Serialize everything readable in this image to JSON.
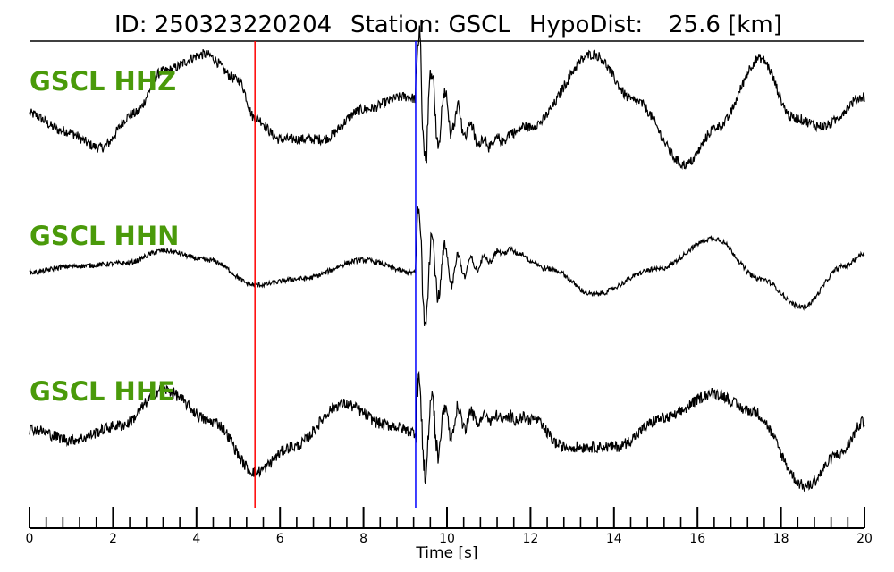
{
  "header": {
    "id_text": "ID: 250323220204",
    "station_text": "Station: GSCL",
    "hypodist_text": "HypoDist:",
    "hypodist_value": "25.6 [km]"
  },
  "colors": {
    "trace": "#000000",
    "label": "#4a9a0a",
    "p_pick": "#ff0000",
    "s_pick": "#0000ff"
  },
  "chart_data": {
    "type": "line",
    "title": "ID: 250323220204   Station: GSCL   HypoDist:    25.6 [km]",
    "xlabel": "Time [s]",
    "xlim": [
      0,
      20
    ],
    "x_ticks": [
      0,
      2,
      4,
      6,
      8,
      10,
      12,
      14,
      16,
      18,
      20
    ],
    "x_tick_labels": [
      "0",
      "2",
      "4",
      "6",
      "8",
      "10",
      "12",
      "14",
      "16",
      "18",
      "20"
    ],
    "minor_tick_step": 0.4,
    "grid": false,
    "picks": [
      {
        "phase": "P",
        "time": 5.4,
        "color": "#ff0000"
      },
      {
        "phase": "S",
        "time": 9.25,
        "color": "#0000ff"
      }
    ],
    "traces": [
      {
        "name": "GSCL HHZ",
        "noise": 0.06,
        "waypoints": [
          [
            0,
            0.05
          ],
          [
            0.8,
            -0.15
          ],
          [
            1.7,
            -0.35
          ],
          [
            2.5,
            0.05
          ],
          [
            3.2,
            0.55
          ],
          [
            4.2,
            0.75
          ],
          [
            5.0,
            0.45
          ],
          [
            5.4,
            0.0
          ],
          [
            6.0,
            -0.25
          ],
          [
            7.0,
            -0.25
          ],
          [
            8.0,
            0.1
          ],
          [
            9.0,
            0.25
          ],
          [
            10.0,
            0.05
          ],
          [
            11.0,
            -0.3
          ],
          [
            12.0,
            -0.1
          ],
          [
            13.5,
            0.75
          ],
          [
            14.5,
            0.2
          ],
          [
            15.7,
            -0.55
          ],
          [
            16.5,
            -0.1
          ],
          [
            17.5,
            0.7
          ],
          [
            18.3,
            0.0
          ],
          [
            19.0,
            -0.1
          ],
          [
            20.0,
            0.25
          ]
        ]
      },
      {
        "name": "GSCL HHN",
        "noise": 0.04,
        "waypoints": [
          [
            0,
            0.0
          ],
          [
            1.0,
            0.1
          ],
          [
            2.3,
            0.15
          ],
          [
            3.2,
            0.35
          ],
          [
            4.3,
            0.2
          ],
          [
            5.4,
            -0.2
          ],
          [
            6.5,
            -0.1
          ],
          [
            8.0,
            0.2
          ],
          [
            9.2,
            0.0
          ],
          [
            10.5,
            0.1
          ],
          [
            11.5,
            0.35
          ],
          [
            12.5,
            0.05
          ],
          [
            13.5,
            -0.35
          ],
          [
            15.0,
            0.05
          ],
          [
            16.4,
            0.55
          ],
          [
            17.5,
            -0.1
          ],
          [
            18.5,
            -0.55
          ],
          [
            19.5,
            0.1
          ],
          [
            20.0,
            0.3
          ]
        ]
      },
      {
        "name": "GSCL HHE",
        "noise": 0.08,
        "waypoints": [
          [
            0,
            0.05
          ],
          [
            1.0,
            -0.1
          ],
          [
            2.2,
            0.1
          ],
          [
            3.2,
            0.6
          ],
          [
            4.4,
            0.15
          ],
          [
            5.4,
            -0.55
          ],
          [
            6.3,
            -0.2
          ],
          [
            7.5,
            0.4
          ],
          [
            8.6,
            0.1
          ],
          [
            9.3,
            0.0
          ],
          [
            10.5,
            0.2
          ],
          [
            12.0,
            0.2
          ],
          [
            12.8,
            -0.2
          ],
          [
            14.0,
            -0.2
          ],
          [
            15.2,
            0.2
          ],
          [
            16.4,
            0.55
          ],
          [
            17.3,
            0.3
          ],
          [
            18.6,
            -0.75
          ],
          [
            19.4,
            -0.3
          ],
          [
            20.0,
            0.15
          ]
        ]
      }
    ]
  }
}
